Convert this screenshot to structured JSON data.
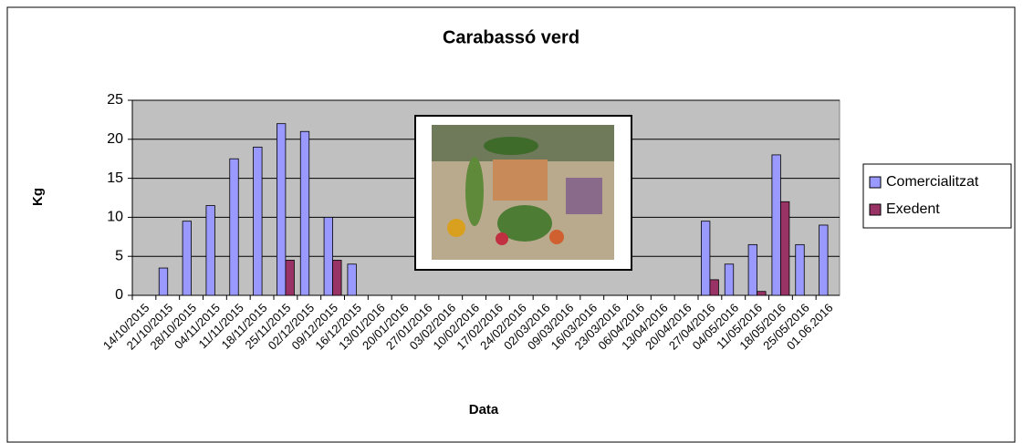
{
  "chart_data": {
    "type": "bar",
    "title": "Carabassó verd",
    "x_label": "Data",
    "y_label": "Kg",
    "categories": [
      "14/10/2015",
      "21/10/2015",
      "28/10/2015",
      "04/11/2015",
      "11/11/2015",
      "18/11/2015",
      "25/11/2015",
      "02/12/2015",
      "09/12/2015",
      "16/12/2015",
      "13/01/2016",
      "20/01/2016",
      "27/01/2016",
      "03/02/2016",
      "10/02/2016",
      "17/02/2016",
      "24/02/2016",
      "02/03/2016",
      "09/03/2016",
      "16/03/2016",
      "23/03/2016",
      "06/04/2016",
      "13/04/2016",
      "20/04/2016",
      "27/04/2016",
      "04/05/2016",
      "11/05/2016",
      "18/05/2016",
      "25/05/2016",
      "01.06.2016"
    ],
    "series": [
      {
        "name": "Comercialitzat",
        "color": "#9999ff",
        "values": [
          null,
          3.5,
          9.5,
          11.5,
          17.5,
          19,
          22,
          21,
          10,
          4,
          null,
          null,
          null,
          null,
          null,
          null,
          null,
          null,
          null,
          null,
          null,
          null,
          null,
          null,
          9.5,
          4,
          6.5,
          18,
          6.5,
          9
        ]
      },
      {
        "name": "Exedent",
        "color": "#993366",
        "values": [
          null,
          null,
          null,
          null,
          null,
          null,
          4.5,
          null,
          4.5,
          null,
          null,
          null,
          null,
          null,
          null,
          null,
          null,
          null,
          null,
          null,
          null,
          null,
          null,
          null,
          2,
          null,
          0.5,
          12,
          null,
          null
        ]
      }
    ],
    "ylim": [
      0,
      25
    ],
    "yticks": [
      0,
      5,
      10,
      15,
      20,
      25
    ],
    "grid": true,
    "legend": "right",
    "plot_background": "#c0c0c0"
  }
}
